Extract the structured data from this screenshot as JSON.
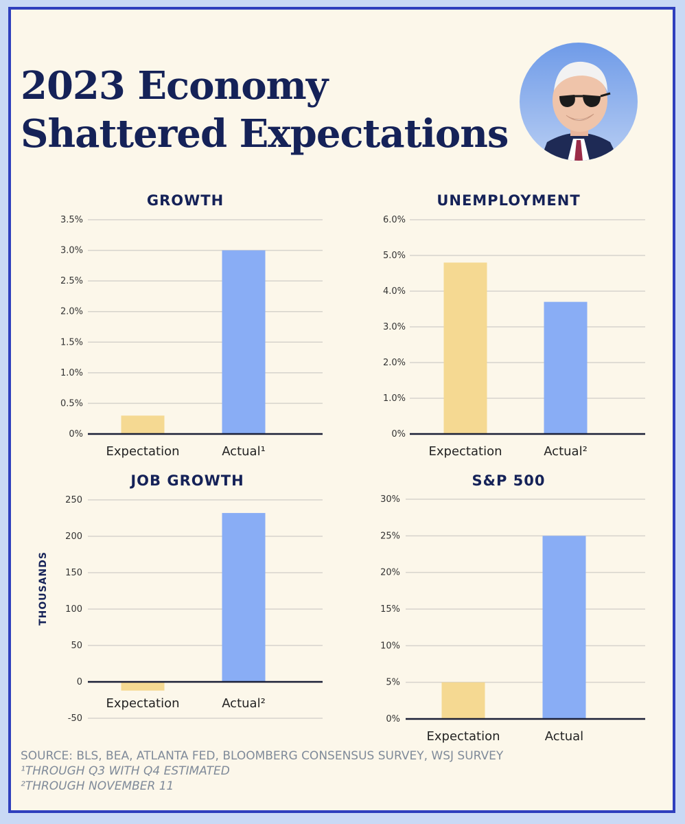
{
  "title_lines": [
    "2023 Economy",
    "Shattered Expectations"
  ],
  "avatar_icon": "person-portrait-icon",
  "colors": {
    "expectation": "#f5d992",
    "actual": "#89adf5",
    "grid": "#d6d3cc",
    "baseline": "#1a1f36",
    "title": "#152258"
  },
  "chart_data": [
    {
      "type": "bar",
      "title": "GROWTH",
      "categories": [
        "Expectation",
        "Actual¹"
      ],
      "values": [
        0.3,
        3.0
      ],
      "ylim": [
        0,
        3.5
      ],
      "ticks": [
        0,
        0.5,
        1.0,
        1.5,
        2.0,
        2.5,
        3.0,
        3.5
      ],
      "tick_labels": [
        "0%",
        "0.5%",
        "1.0%",
        "1.5%",
        "2.0%",
        "2.5%",
        "3.0%",
        "3.5%"
      ],
      "ylabel": "",
      "grid": true
    },
    {
      "type": "bar",
      "title": "UNEMPLOYMENT",
      "categories": [
        "Expectation",
        "Actual²"
      ],
      "values": [
        4.8,
        3.7
      ],
      "ylim": [
        0,
        6.0
      ],
      "ticks": [
        0,
        1.0,
        2.0,
        3.0,
        4.0,
        5.0,
        6.0
      ],
      "tick_labels": [
        "0%",
        "1.0%",
        "2.0%",
        "3.0%",
        "4.0%",
        "5.0%",
        "6.0%"
      ],
      "ylabel": "",
      "grid": true
    },
    {
      "type": "bar",
      "title": "JOB GROWTH",
      "categories": [
        "Expectation",
        "Actual²"
      ],
      "values": [
        -12,
        232
      ],
      "ylim": [
        -50,
        250
      ],
      "ticks": [
        -50,
        0,
        50,
        100,
        150,
        200,
        250
      ],
      "tick_labels": [
        "-50",
        "0",
        "50",
        "100",
        "150",
        "200",
        "250"
      ],
      "ylabel": "THOUSANDS",
      "grid": true
    },
    {
      "type": "bar",
      "title": "S&P 500",
      "categories": [
        "Expectation",
        "Actual"
      ],
      "values": [
        5,
        25
      ],
      "ylim": [
        0,
        30
      ],
      "ticks": [
        0,
        5,
        10,
        15,
        20,
        25,
        30
      ],
      "tick_labels": [
        "0%",
        "5%",
        "10%",
        "15%",
        "20%",
        "25%",
        "30%"
      ],
      "ylabel": "",
      "grid": true
    }
  ],
  "notes": {
    "source": "SOURCE: BLS, BEA, ATLANTA FED, BLOOMBERG CONSENSUS SURVEY, WSJ SURVEY",
    "footnote1": "¹THROUGH Q3 WITH Q4 ESTIMATED",
    "footnote2": "²THROUGH NOVEMBER 11"
  }
}
